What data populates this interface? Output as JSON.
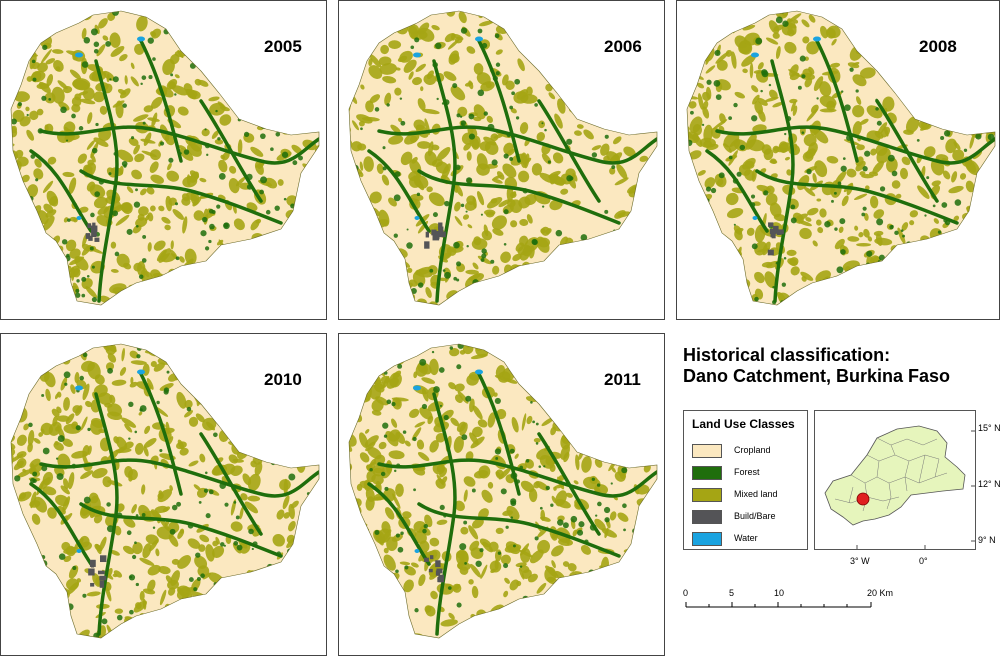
{
  "panels": [
    {
      "year": "2005"
    },
    {
      "year": "2006"
    },
    {
      "year": "2008"
    },
    {
      "year": "2010"
    },
    {
      "year": "2011"
    }
  ],
  "title": {
    "line1": "Historical classification:",
    "line2": "Dano Catchment, Burkina Faso"
  },
  "legend": {
    "title": "Land Use Classes",
    "items": [
      {
        "label": "Cropland",
        "color": "#fbe8c0"
      },
      {
        "label": "Forest",
        "color": "#1f6e0c"
      },
      {
        "label": "Mixed land",
        "color": "#a5a514"
      },
      {
        "label": "Build/Bare",
        "color": "#545457"
      },
      {
        "label": "Water",
        "color": "#1aa3e0"
      }
    ]
  },
  "inset": {
    "lat_labels": [
      "15° N",
      "12° N",
      "9° N"
    ],
    "lon_labels": [
      "3° W",
      "0°"
    ],
    "country_color": "#e6f5bc",
    "marker_color": "#e02020"
  },
  "scale": {
    "labels": [
      "0",
      "5",
      "10",
      "20 Km"
    ]
  }
}
